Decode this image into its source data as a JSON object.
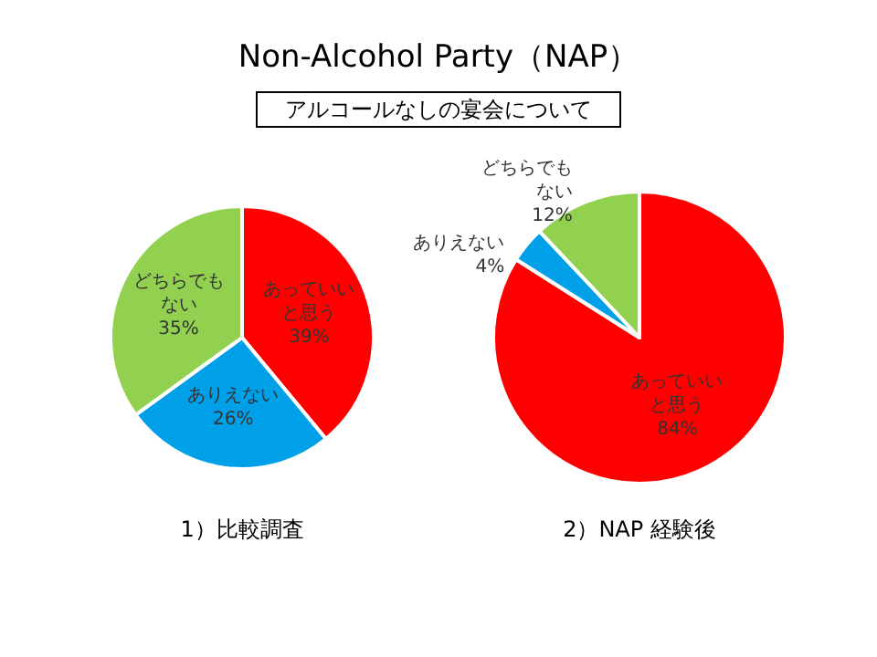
{
  "chart_data": [
    {
      "type": "other",
      "title": "Non-Alcohol Party（NAP）",
      "subtitle": "アルコールなしの宴会について"
    },
    {
      "type": "pie",
      "title": "1）比較調査",
      "categories": [
        "あっていいと思う",
        "ありえない",
        "どちらでもない"
      ],
      "values": [
        39,
        26,
        35
      ],
      "value_labels": [
        "39%",
        "26%",
        "35%"
      ],
      "colors": [
        "#ff0000",
        "#00a0e9",
        "#92d050"
      ],
      "legend": false
    },
    {
      "type": "pie",
      "title": "2）NAP 経験後",
      "categories": [
        "あっていいと思う",
        "ありえない",
        "どちらでもない"
      ],
      "values": [
        84,
        4,
        12
      ],
      "value_labels": [
        "84%",
        "4%",
        "12%"
      ],
      "colors": [
        "#ff0000",
        "#00a0e9",
        "#92d050"
      ],
      "legend": false
    }
  ]
}
